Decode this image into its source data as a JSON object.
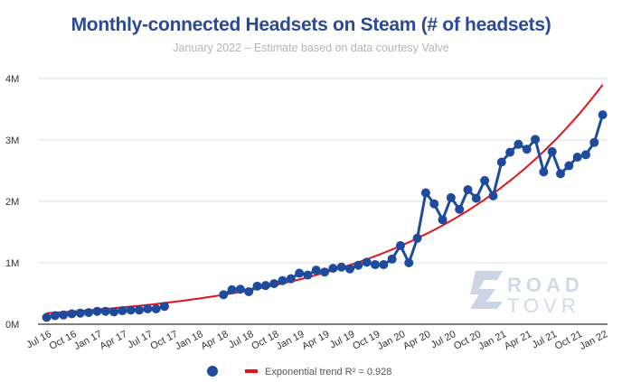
{
  "chart_data": {
    "type": "line",
    "title": "Monthly-connected Headsets on Steam (# of headsets)",
    "subtitle": "January 2022 – Estimate based on data courtesy Valve",
    "xlabel": "",
    "ylabel": "",
    "ylim": [
      0,
      4000000
    ],
    "yticks": [
      {
        "value": 0,
        "label": "0M"
      },
      {
        "value": 1000000,
        "label": "1M"
      },
      {
        "value": 2000000,
        "label": "2M"
      },
      {
        "value": 3000000,
        "label": "3M"
      },
      {
        "value": 4000000,
        "label": "4M"
      }
    ],
    "xticks": [
      "Jul 16",
      "Oct 16",
      "Jan 17",
      "Apr 17",
      "Jul 17",
      "Oct 17",
      "Jan 18",
      "Apr 18",
      "Jul 18",
      "Oct 18",
      "Jan 19",
      "Apr 19",
      "Jul 19",
      "Oct 19",
      "Jan 20",
      "Apr 20",
      "Jul 20",
      "Oct 20",
      "Jan 21",
      "Apr 21",
      "Jul 21",
      "Oct 21",
      "Jan 22"
    ],
    "grid": true,
    "legend_position": "bottom",
    "x": [
      "2016-07",
      "2016-08",
      "2016-09",
      "2016-10",
      "2016-11",
      "2016-12",
      "2017-01",
      "2017-02",
      "2017-03",
      "2017-04",
      "2017-05",
      "2017-06",
      "2017-07",
      "2017-08",
      "2017-09",
      "2017-10",
      "2017-11",
      "2017-12",
      "2018-01",
      "2018-02",
      "2018-03",
      "2018-04",
      "2018-05",
      "2018-06",
      "2018-07",
      "2018-08",
      "2018-09",
      "2018-10",
      "2018-11",
      "2018-12",
      "2019-01",
      "2019-02",
      "2019-03",
      "2019-04",
      "2019-05",
      "2019-06",
      "2019-07",
      "2019-08",
      "2019-09",
      "2019-10",
      "2019-11",
      "2019-12",
      "2020-01",
      "2020-02",
      "2020-03",
      "2020-04",
      "2020-05",
      "2020-06",
      "2020-07",
      "2020-08",
      "2020-09",
      "2020-10",
      "2020-11",
      "2020-12",
      "2021-01",
      "2021-02",
      "2021-03",
      "2021-04",
      "2021-05",
      "2021-06",
      "2021-07",
      "2021-08",
      "2021-09",
      "2021-10",
      "2021-11",
      "2021-12",
      "2022-01"
    ],
    "series": [
      {
        "color": "#1f4b9c",
        "values": [
          110000,
          140000,
          150000,
          170000,
          180000,
          190000,
          210000,
          210000,
          200000,
          220000,
          230000,
          230000,
          250000,
          250000,
          290000,
          null,
          null,
          null,
          null,
          null,
          null,
          480000,
          560000,
          570000,
          530000,
          620000,
          630000,
          660000,
          710000,
          740000,
          830000,
          800000,
          880000,
          850000,
          910000,
          930000,
          900000,
          960000,
          1010000,
          970000,
          970000,
          1060000,
          1280000,
          1000000,
          1400000,
          2140000,
          1960000,
          1700000,
          2060000,
          1870000,
          2190000,
          2050000,
          2340000,
          2090000,
          2640000,
          2800000,
          2930000,
          2850000,
          3010000,
          2480000,
          2810000,
          2450000,
          2580000,
          2720000,
          2760000,
          2960000,
          3410000
        ]
      }
    ],
    "trend": {
      "name": "Exponential trend R² = 0.928",
      "type": "exponential",
      "r2": 0.928,
      "start_value": 180000,
      "end_value": 3900000,
      "color": "#e3131b"
    }
  },
  "watermark": {
    "text_line1": "ROAD",
    "text_line2": "TOVR"
  }
}
